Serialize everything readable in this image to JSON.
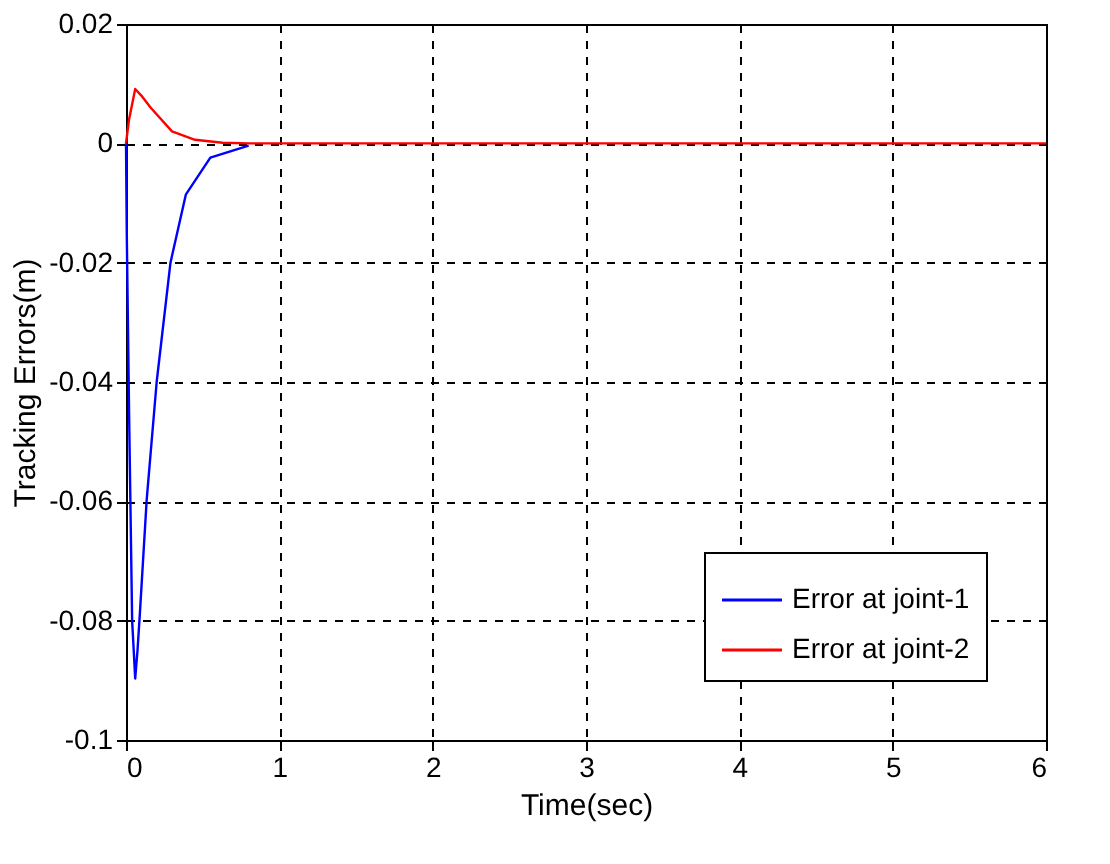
{
  "chart_data": {
    "type": "line",
    "xlabel": "Time(sec)",
    "ylabel": "Tracking Errors(m)",
    "xlim": [
      0,
      6
    ],
    "ylim": [
      -0.1,
      0.02
    ],
    "xticks": [
      0,
      1,
      2,
      3,
      4,
      5,
      6
    ],
    "yticks": [
      -0.1,
      -0.08,
      -0.06,
      -0.04,
      -0.02,
      0,
      0.02
    ],
    "grid": true,
    "legend": "bottom right",
    "line_style": "solid",
    "series": [
      {
        "name": "Error at joint-1",
        "color": "#0000ff",
        "x": [
          0,
          0.005,
          0.02,
          0.04,
          0.06,
          0.075,
          0.09,
          0.135,
          0.2,
          0.29,
          0.39,
          0.55,
          0.8
        ],
        "values": [
          0,
          -0.015,
          -0.045,
          -0.08,
          -0.0897,
          -0.085,
          -0.079,
          -0.0597,
          -0.04,
          -0.02,
          -0.0086,
          -0.0024,
          -0.0004
        ]
      },
      {
        "name": "Error at joint-2",
        "color": "#ff0000",
        "x": [
          0,
          0.02,
          0.06,
          0.1,
          0.16,
          0.3,
          0.45,
          0.63,
          0.8,
          1,
          2,
          3,
          4,
          5,
          6
        ],
        "values": [
          0,
          0.004,
          0.0091,
          0.008,
          0.006,
          0.002,
          0.0006,
          0.0001,
          0,
          0,
          0,
          0,
          0,
          0,
          0
        ]
      }
    ]
  }
}
